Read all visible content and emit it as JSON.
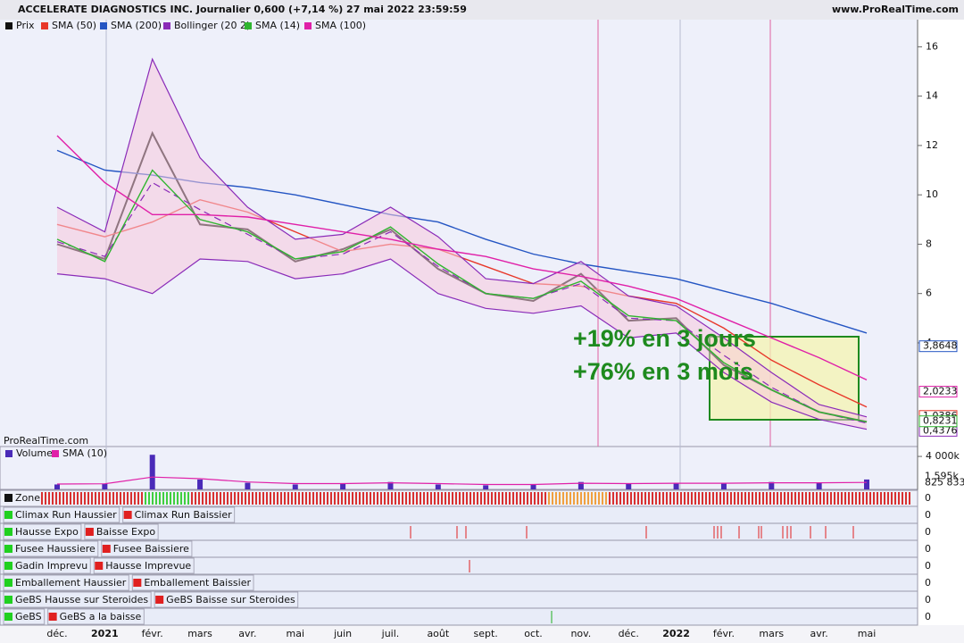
{
  "header": {
    "title": "ACCELERATE DIAGNOSTICS INC. Journalier 0,600 (+7,14 %) 27 mai 2022 23:59:59",
    "site": "www.ProRealTime.com",
    "watermark": "ProRealTime.com"
  },
  "annotations": [
    "+19% en 3 jours",
    "+76% en 3 mois"
  ],
  "chart_data": [
    {
      "type": "line",
      "categories": [
        "déc.",
        "2021",
        "févr.",
        "mars",
        "avr.",
        "mai",
        "juin",
        "juil.",
        "août",
        "sept.",
        "oct.",
        "nov.",
        "déc.",
        "2022",
        "févr.",
        "mars",
        "avr.",
        "mai"
      ],
      "ylim": [
        -0.2,
        17.1
      ],
      "yticks": [
        4,
        6,
        8,
        10,
        12,
        14,
        16
      ],
      "series": [
        {
          "name": "Prix",
          "color": "#111111",
          "values": [
            8.0,
            7.4,
            12.5,
            8.8,
            8.6,
            7.3,
            7.8,
            8.6,
            7.0,
            6.0,
            5.7,
            6.8,
            4.9,
            5.0,
            3.1,
            2.1,
            1.2,
            0.8
          ],
          "last": {
            "value": 0.6,
            "label": "0,600"
          }
        },
        {
          "name": "SMA (50)",
          "color": "#e8382a",
          "values": [
            8.8,
            8.3,
            8.9,
            9.8,
            9.3,
            8.5,
            7.7,
            8.0,
            7.8,
            7.1,
            6.4,
            6.3,
            5.9,
            5.6,
            4.6,
            3.3,
            2.3,
            1.4
          ],
          "last": {
            "value": 1.0386,
            "label": "1,0386"
          }
        },
        {
          "name": "SMA (200)",
          "color": "#2455c3",
          "values": [
            11.8,
            11.0,
            10.8,
            10.5,
            10.3,
            10.0,
            9.6,
            9.2,
            8.9,
            8.2,
            7.6,
            7.2,
            6.9,
            6.6,
            6.1,
            5.6,
            5.0,
            4.4
          ],
          "last": {
            "value": 3.8648,
            "label": "3,8648"
          }
        },
        {
          "name": "Bollinger (20 2)",
          "color": "#8a2bb8",
          "values": [
            8.1,
            7.5,
            10.5,
            9.4,
            8.4,
            7.4,
            7.6,
            8.5,
            7.1,
            6.0,
            5.8,
            6.4,
            5.0,
            4.9,
            3.5,
            2.2,
            1.2,
            0.75
          ],
          "upper": [
            9.5,
            8.5,
            15.5,
            11.5,
            9.5,
            8.2,
            8.4,
            9.5,
            8.3,
            6.6,
            6.4,
            7.3,
            5.9,
            5.5,
            4.2,
            2.8,
            1.5,
            1.0
          ],
          "lower": [
            6.8,
            6.6,
            6.0,
            7.4,
            7.3,
            6.6,
            6.8,
            7.4,
            6.0,
            5.4,
            5.2,
            5.5,
            4.2,
            4.4,
            2.8,
            1.6,
            0.9,
            0.5
          ],
          "last": {
            "value": 0.4376,
            "label": "0,4376"
          }
        },
        {
          "name": "SMA (14)",
          "color": "#2fb52f",
          "values": [
            8.2,
            7.3,
            11.0,
            9.0,
            8.5,
            7.4,
            7.7,
            8.7,
            7.2,
            6.0,
            5.8,
            6.5,
            5.1,
            4.9,
            3.2,
            2.1,
            1.2,
            0.8
          ],
          "last": {
            "value": 0.8231,
            "label": "0,8231"
          }
        },
        {
          "name": "SMA (100)",
          "color": "#e020a8",
          "values": [
            12.4,
            10.5,
            9.2,
            9.2,
            9.1,
            8.8,
            8.5,
            8.2,
            7.8,
            7.5,
            7.0,
            6.7,
            6.3,
            5.8,
            5.0,
            4.2,
            3.4,
            2.5
          ],
          "last": {
            "value": 2.0233,
            "label": "2,0233"
          }
        }
      ]
    },
    {
      "type": "bar",
      "ylim": [
        0,
        5200000
      ],
      "yticks": [
        {
          "value": 4000000,
          "label": "4 000k"
        }
      ],
      "series": [
        {
          "name": "Volume",
          "color": "#4a2bb8",
          "values": [
            600000,
            700000,
            4200000,
            1200000,
            800000,
            600000,
            700000,
            900000,
            600000,
            500000,
            600000,
            900000,
            700000,
            800000,
            700000,
            900000,
            800000,
            1200000
          ],
          "last": {
            "value": 1595000,
            "label": "1 595k"
          }
        },
        {
          "name": "SMA (10)",
          "color": "#e020a8",
          "values": [
            650000,
            680000,
            1500000,
            1300000,
            900000,
            700000,
            700000,
            800000,
            700000,
            600000,
            600000,
            750000,
            700000,
            750000,
            750000,
            800000,
            800000,
            850000
          ],
          "last": {
            "value": 825833,
            "label": "825 833"
          }
        }
      ]
    }
  ],
  "zone": {
    "label": "Zone",
    "level": 0
  },
  "indicators": [
    {
      "labels": [
        "Climax Run Haussier",
        "Climax Run Baissier"
      ],
      "level": 0
    },
    {
      "labels": [
        "Hausse Expo",
        "Baisse Expo"
      ],
      "level": 0
    },
    {
      "labels": [
        "Fusee Haussiere",
        "Fusee Baissiere"
      ],
      "level": 0
    },
    {
      "labels": [
        "Gadin Imprevu",
        "Hausse Imprevue"
      ],
      "level": 0
    },
    {
      "labels": [
        "Emballement Haussier",
        "Emballement Baissier"
      ],
      "level": 0
    },
    {
      "labels": [
        "GeBS Hausse sur Steroides",
        "GeBS Baisse sur Steroides"
      ],
      "level": 0
    },
    {
      "labels": [
        "GeBS",
        "GeBS a la baisse"
      ],
      "level": 0
    }
  ]
}
